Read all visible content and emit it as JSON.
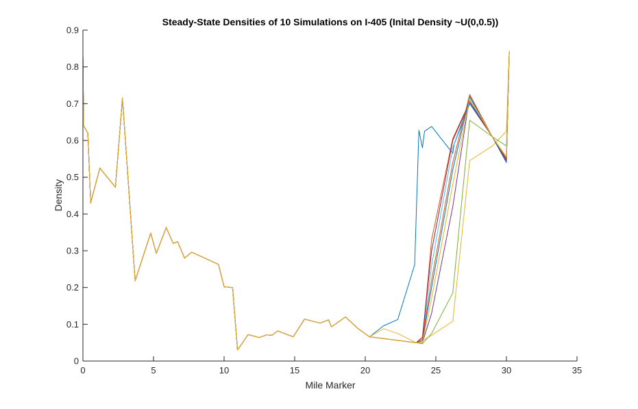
{
  "chart_data": {
    "type": "line",
    "title": "Steady-State Densities of 10 Simulations on I-405 (Inital Density ~U(0,0.5))",
    "xlabel": "Mile Marker",
    "ylabel": "Density",
    "xlim": [
      0,
      35
    ],
    "ylim": [
      0,
      0.9
    ],
    "xticks": [
      "0",
      "5",
      "10",
      "15",
      "20",
      "25",
      "30",
      "35"
    ],
    "yticks": [
      "0",
      "0.1",
      "0.2",
      "0.3",
      "0.4",
      "0.5",
      "0.6",
      "0.7",
      "0.8",
      "0.9"
    ],
    "grid": false,
    "legend": "none",
    "base_profile": {
      "x": [
        0.0,
        0.05,
        0.35,
        0.55,
        1.2,
        2.3,
        2.8,
        3.7,
        4.8,
        5.2,
        5.9,
        6.4,
        6.7,
        7.2,
        7.7,
        9.6,
        10.0,
        10.6,
        10.95,
        11.7,
        12.5,
        13.0,
        13.4,
        13.8,
        14.2,
        14.9,
        15.7,
        16.8,
        17.4,
        17.6,
        18.6,
        19.5,
        20.3
      ],
      "y": [
        0.83,
        0.64,
        0.62,
        0.43,
        0.525,
        0.473,
        0.715,
        0.218,
        0.348,
        0.293,
        0.363,
        0.32,
        0.325,
        0.28,
        0.296,
        0.263,
        0.202,
        0.2,
        0.03,
        0.072,
        0.064,
        0.071,
        0.07,
        0.082,
        0.076,
        0.066,
        0.114,
        0.103,
        0.112,
        0.093,
        0.12,
        0.088,
        0.066
      ]
    },
    "series": [
      {
        "color": "#0072BD",
        "x": [
          20.3,
          21.3,
          22.3,
          23.5,
          23.8,
          24.05,
          24.2,
          24.7,
          26.2,
          26.3,
          27.4,
          29.0,
          30.0,
          30.2
        ],
        "y": [
          0.066,
          0.096,
          0.113,
          0.262,
          0.628,
          0.58,
          0.625,
          0.638,
          0.565,
          0.59,
          0.7,
          0.61,
          0.552,
          0.84
        ]
      },
      {
        "color": "#D95319",
        "x": [
          20.3,
          23.6,
          24.05,
          24.7,
          26.2,
          27.4,
          29.0,
          30.0,
          30.2
        ],
        "y": [
          0.066,
          0.05,
          0.055,
          0.33,
          0.605,
          0.705,
          0.61,
          0.548,
          0.84
        ]
      },
      {
        "color": "#EDB120",
        "x": [
          20.3,
          21.3,
          22.3,
          23.6,
          24.05,
          24.7,
          26.2,
          27.4,
          29.0,
          30.0,
          30.2
        ],
        "y": [
          0.066,
          0.088,
          0.075,
          0.05,
          0.055,
          0.07,
          0.108,
          0.545,
          0.585,
          0.625,
          0.845
        ]
      },
      {
        "color": "#7E2F8E",
        "x": [
          20.3,
          23.6,
          24.05,
          24.7,
          26.2,
          27.4,
          29.0,
          30.0,
          30.2
        ],
        "y": [
          0.066,
          0.05,
          0.05,
          0.13,
          0.42,
          0.72,
          0.61,
          0.54,
          0.84
        ]
      },
      {
        "color": "#77AC30",
        "x": [
          20.3,
          23.6,
          24.05,
          24.7,
          26.2,
          27.4,
          29.0,
          30.0,
          30.2
        ],
        "y": [
          0.066,
          0.05,
          0.047,
          0.075,
          0.185,
          0.655,
          0.61,
          0.585,
          0.84
        ]
      },
      {
        "color": "#4DBEEE",
        "x": [
          20.3,
          23.6,
          24.05,
          24.7,
          26.2,
          27.4,
          29.0,
          30.0,
          30.2
        ],
        "y": [
          0.066,
          0.05,
          0.06,
          0.26,
          0.58,
          0.71,
          0.61,
          0.548,
          0.84
        ]
      },
      {
        "color": "#A2142F",
        "x": [
          20.3,
          23.6,
          24.05,
          24.7,
          26.2,
          27.4,
          29.0,
          30.0,
          30.2
        ],
        "y": [
          0.066,
          0.05,
          0.065,
          0.3,
          0.6,
          0.705,
          0.61,
          0.545,
          0.84
        ]
      },
      {
        "color": "#0072BD",
        "x": [
          20.3,
          23.6,
          24.05,
          24.7,
          26.2,
          27.4,
          29.0,
          30.0,
          30.2
        ],
        "y": [
          0.066,
          0.05,
          0.055,
          0.2,
          0.52,
          0.72,
          0.61,
          0.542,
          0.84
        ]
      },
      {
        "color": "#D95319",
        "x": [
          20.3,
          23.6,
          24.05,
          24.7,
          26.2,
          27.4,
          29.0,
          30.0,
          30.2
        ],
        "y": [
          0.066,
          0.05,
          0.06,
          0.22,
          0.54,
          0.725,
          0.61,
          0.55,
          0.84
        ]
      },
      {
        "color": "#EDB120",
        "x": [
          20.3,
          23.6,
          24.05,
          24.7,
          26.2,
          27.4,
          29.0,
          30.0,
          30.2
        ],
        "y": [
          0.066,
          0.05,
          0.05,
          0.17,
          0.48,
          0.715,
          0.61,
          0.555,
          0.84
        ]
      }
    ]
  }
}
